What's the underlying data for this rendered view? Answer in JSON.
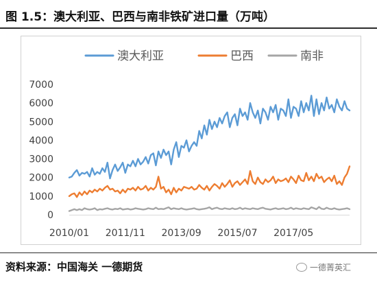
{
  "header": {
    "title": "图 1.5：澳大利亚、巴西与南非铁矿进口量（万吨）"
  },
  "footer": {
    "source": "资料来源：中国海关  一德期货",
    "watermark": "一德菁英汇"
  },
  "chart_data": {
    "type": "line",
    "title": "图 1.5：澳大利亚、巴西与南非铁矿进口量（万吨）",
    "unit": "万吨",
    "xlabel": "",
    "ylabel": "",
    "ylim": [
      0,
      7000
    ],
    "yticks": [
      0,
      1000,
      2000,
      3000,
      4000,
      5000,
      6000,
      7000
    ],
    "x_start": "2010/01",
    "x_end": "2019/07",
    "xtick_labels": [
      "2010/01",
      "2011/11",
      "2013/09",
      "2015/07",
      "2017/05"
    ],
    "legend_position": "top",
    "grid": false,
    "colors": {
      "澳大利亚": "#5b9bd5",
      "巴西": "#ed7d31",
      "南非": "#a5a5a5"
    },
    "series": [
      {
        "name": "澳大利亚",
        "values": [
          2000,
          2050,
          2250,
          2400,
          2100,
          2250,
          2200,
          2300,
          2050,
          2500,
          2150,
          2300,
          2200,
          2500,
          2300,
          2800,
          1950,
          2400,
          2700,
          2350,
          2550,
          2800,
          2250,
          2700,
          2600,
          2900,
          2600,
          3000,
          2700,
          2850,
          3100,
          2750,
          3200,
          3300,
          2650,
          3400,
          3050,
          3500,
          3200,
          3400,
          2700,
          3500,
          3900,
          3100,
          3700,
          3600,
          4000,
          3400,
          3700,
          3900,
          3700,
          4500,
          4100,
          4800,
          4300,
          5100,
          4600,
          5000,
          4700,
          5200,
          4900,
          5300,
          5500,
          4700,
          5200,
          5400,
          4800,
          5700,
          5300,
          5500,
          5100,
          6000,
          5500,
          5200,
          5600,
          4900,
          5700,
          5500,
          5100,
          5800,
          5500,
          5900,
          5100,
          5700,
          5600,
          5300,
          6200,
          5200,
          5800,
          5700,
          5300,
          6100,
          5500,
          6000,
          5600,
          6400,
          5300,
          6200,
          5400,
          6000,
          5600,
          6300,
          5700,
          5900,
          5500,
          6200,
          5800,
          5600,
          6100,
          5700,
          5600
        ]
      },
      {
        "name": "巴西",
        "values": [
          1000,
          1100,
          1150,
          950,
          1200,
          1050,
          1250,
          1100,
          1300,
          1200,
          1350,
          1250,
          1400,
          1300,
          1450,
          1550,
          1350,
          1400,
          1250,
          1300,
          1150,
          1350,
          1200,
          1400,
          1350,
          1450,
          1300,
          1500,
          1350,
          1400,
          1550,
          1300,
          1450,
          1350,
          1500,
          2050,
          1400,
          1500,
          1200,
          1350,
          1100,
          1450,
          1200,
          1400,
          1300,
          1500,
          1450,
          1400,
          1500,
          1350,
          1400,
          1600,
          1450,
          1350,
          1550,
          1300,
          1500,
          1650,
          1550,
          1400,
          1700,
          1500,
          1650,
          1850,
          1500,
          1700,
          1800,
          1600,
          1750,
          1900,
          1650,
          2350,
          1800,
          1650,
          2000,
          1750,
          1650,
          1900,
          1750,
          1850,
          2050,
          1700,
          1900,
          1800,
          1850,
          1950,
          1750,
          2050,
          1900,
          1700,
          2100,
          1850,
          1800,
          2250,
          1850,
          2050,
          1800,
          2200,
          1950,
          2050,
          1750,
          1900,
          2000,
          1800,
          2100,
          1650,
          1800,
          1600,
          2000,
          2200,
          2600
        ]
      },
      {
        "name": "南非",
        "values": [
          200,
          250,
          300,
          250,
          300,
          250,
          350,
          300,
          280,
          300,
          350,
          250,
          300,
          280,
          320,
          350,
          300,
          280,
          320,
          300,
          350,
          280,
          300,
          320,
          280,
          300,
          350,
          320,
          300,
          280,
          300,
          350,
          320,
          300,
          380,
          300,
          320,
          300,
          350,
          400,
          300,
          350,
          320,
          300,
          350,
          300,
          280,
          300,
          320,
          350,
          300,
          280,
          300,
          320,
          350,
          400,
          300,
          350,
          380,
          320,
          300,
          350,
          320,
          300,
          350,
          300,
          320,
          380,
          300,
          350,
          320,
          300,
          350,
          320,
          300,
          350,
          380,
          320,
          300,
          280,
          320,
          350,
          300,
          320,
          350,
          300,
          320,
          380,
          300,
          350,
          320,
          300,
          350,
          320,
          300,
          400,
          350,
          300,
          420,
          320,
          300,
          380,
          320,
          300,
          350,
          300,
          280,
          300,
          320,
          350,
          300
        ]
      }
    ]
  }
}
